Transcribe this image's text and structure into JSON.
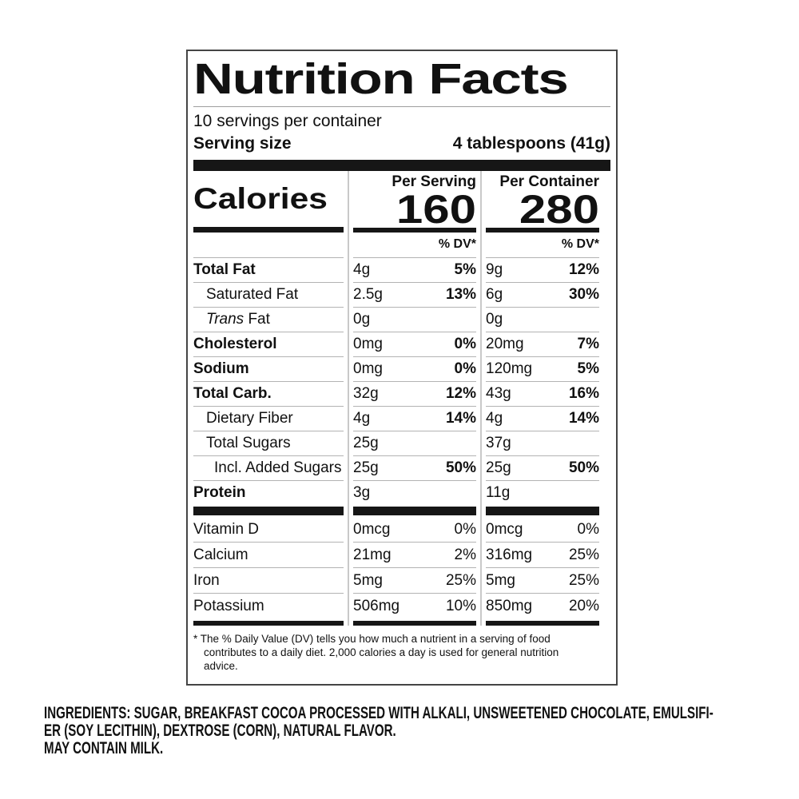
{
  "label": {
    "title": "Nutrition Facts",
    "servings_per_container": "10 servings per container",
    "serving_size": {
      "label": "Serving size",
      "value": "4 tablespoons (41g)"
    },
    "calories_label": "Calories",
    "columns": [
      {
        "header": "Per Serving",
        "calories": "160",
        "dv_header": "% DV*"
      },
      {
        "header": "Per Container",
        "calories": "280",
        "dv_header": "% DV*"
      }
    ],
    "rows": [
      {
        "name": "Total Fat",
        "per_serving": {
          "amount": "4g",
          "dv": "5%"
        },
        "per_container": {
          "amount": "9g",
          "dv": "12%"
        }
      },
      {
        "name": "Saturated Fat",
        "per_serving": {
          "amount": "2.5g",
          "dv": "13%"
        },
        "per_container": {
          "amount": "6g",
          "dv": "30%"
        }
      },
      {
        "name_italic": "Trans",
        "name": " Fat",
        "per_serving": {
          "amount": "0g",
          "dv": ""
        },
        "per_container": {
          "amount": "0g",
          "dv": ""
        }
      },
      {
        "name": "Cholesterol",
        "per_serving": {
          "amount": "0mg",
          "dv": "0%"
        },
        "per_container": {
          "amount": "20mg",
          "dv": "7%"
        }
      },
      {
        "name": "Sodium",
        "per_serving": {
          "amount": "0mg",
          "dv": "0%"
        },
        "per_container": {
          "amount": "120mg",
          "dv": "5%"
        }
      },
      {
        "name": "Total Carb.",
        "per_serving": {
          "amount": "32g",
          "dv": "12%"
        },
        "per_container": {
          "amount": "43g",
          "dv": "16%"
        }
      },
      {
        "name": "Dietary Fiber",
        "per_serving": {
          "amount": "4g",
          "dv": "14%"
        },
        "per_container": {
          "amount": "4g",
          "dv": "14%"
        }
      },
      {
        "name": "Total Sugars",
        "per_serving": {
          "amount": "25g",
          "dv": ""
        },
        "per_container": {
          "amount": "37g",
          "dv": ""
        }
      },
      {
        "name": "Incl. Added Sugars",
        "per_serving": {
          "amount": "25g",
          "dv": "50%"
        },
        "per_container": {
          "amount": "25g",
          "dv": "50%"
        }
      },
      {
        "name": "Protein",
        "per_serving": {
          "amount": "3g",
          "dv": ""
        },
        "per_container": {
          "amount": "11g",
          "dv": ""
        }
      }
    ],
    "vitamin_rows": [
      {
        "name": "Vitamin D",
        "per_serving": {
          "amount": "0mcg",
          "dv": "0%"
        },
        "per_container": {
          "amount": "0mcg",
          "dv": "0%"
        }
      },
      {
        "name": "Calcium",
        "per_serving": {
          "amount": "21mg",
          "dv": "2%"
        },
        "per_container": {
          "amount": "316mg",
          "dv": "25%"
        }
      },
      {
        "name": "Iron",
        "per_serving": {
          "amount": "5mg",
          "dv": "25%"
        },
        "per_container": {
          "amount": "5mg",
          "dv": "25%"
        }
      },
      {
        "name": "Potassium",
        "per_serving": {
          "amount": "506mg",
          "dv": "10%"
        },
        "per_container": {
          "amount": "850mg",
          "dv": "20%"
        }
      }
    ],
    "footnote_lines": [
      "* The % Daily Value (DV) tells you how much a nutrient in a serving of food",
      "contributes to a daily diet. 2,000 calories a day is used for general nutrition",
      "advice."
    ],
    "colors": {
      "text": "#111111",
      "bar": "#161616",
      "hairline": "#b3b3b3",
      "border": "#454545",
      "background": "#ffffff"
    }
  },
  "ingredients": {
    "lines": [
      "INGREDIENTS: SUGAR, BREAKFAST COCOA PROCESSED WITH ALKALI, UNSWEETENED CHOCOLATE, EMULSIFI-",
      "ER (SOY LECITHIN), DEXTROSE (CORN), NATURAL FLAVOR.",
      "MAY CONTAIN MILK."
    ]
  }
}
